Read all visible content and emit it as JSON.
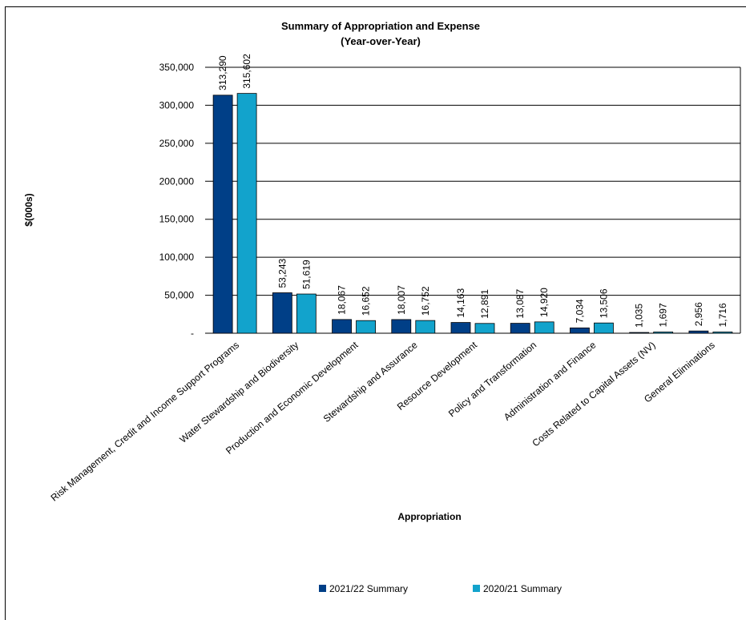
{
  "chart_data": {
    "type": "bar",
    "title": "Summary of Appropriation and Expense",
    "subtitle": "(Year-over-Year)",
    "xlabel": "Appropriation",
    "ylabel": "$(000s)",
    "ylim": [
      0,
      350000
    ],
    "yticks": [
      0,
      50000,
      100000,
      150000,
      200000,
      250000,
      300000,
      350000
    ],
    "ytick_labels": [
      "-",
      "50,000",
      "100,000",
      "150,000",
      "200,000",
      "250,000",
      "300,000",
      "350,000"
    ],
    "grid": true,
    "legend_position": "bottom",
    "categories": [
      "Risk Management, Credit and Income Support Programs",
      "Water Stewardship and Biodiversity",
      "Production and Economic Development",
      "Stewardship and Assurance",
      "Resource Development",
      "Policy and Transformation",
      "Administration and Finance",
      "Costs Related to Capital Assets (NV)",
      "General Eliminations"
    ],
    "series": [
      {
        "name": "2021/22 Summary",
        "color": "#003f87",
        "values": [
          313290,
          53243,
          18067,
          18007,
          14163,
          13087,
          7034,
          1035,
          2956
        ],
        "labels": [
          "313,290",
          "53,243",
          "18,067",
          "18,007",
          "14,163",
          "13,087",
          "7,034",
          "1,035",
          "2,956"
        ]
      },
      {
        "name": "2020/21 Summary",
        "color": "#12a3cc",
        "values": [
          315602,
          51619,
          16652,
          16752,
          12891,
          14920,
          13506,
          1697,
          1716
        ],
        "labels": [
          "315,602",
          "51,619",
          "16,652",
          "16,752",
          "12,891",
          "14,920",
          "13,506",
          "1,697",
          "1,716"
        ]
      }
    ]
  }
}
